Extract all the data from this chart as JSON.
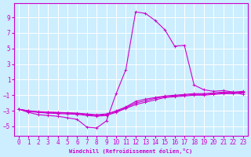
{
  "xlabel": "Windchill (Refroidissement éolien,°C)",
  "xlim": [
    -0.5,
    23.5
  ],
  "ylim": [
    -6.2,
    10.8
  ],
  "xticks": [
    0,
    1,
    2,
    3,
    4,
    5,
    6,
    7,
    8,
    9,
    10,
    11,
    12,
    13,
    14,
    15,
    16,
    17,
    18,
    19,
    20,
    21,
    22,
    23
  ],
  "yticks": [
    -5,
    -3,
    -1,
    1,
    3,
    5,
    7,
    9
  ],
  "background_color": "#cceeff",
  "grid_color": "#ffffff",
  "line_color": "#cc00cc",
  "line_width": 0.8,
  "marker": "+",
  "marker_size": 3,
  "curves": {
    "main": [
      [
        0,
        -2.8
      ],
      [
        1,
        -3.2
      ],
      [
        2,
        -3.5
      ],
      [
        3,
        -3.6
      ],
      [
        4,
        -3.7
      ],
      [
        5,
        -3.9
      ],
      [
        6,
        -4.1
      ],
      [
        7,
        -5.1
      ],
      [
        8,
        -5.2
      ],
      [
        9,
        -4.3
      ],
      [
        10,
        -0.8
      ],
      [
        11,
        2.3
      ],
      [
        12,
        9.7
      ],
      [
        13,
        9.5
      ],
      [
        14,
        8.6
      ],
      [
        15,
        7.4
      ],
      [
        16,
        5.3
      ],
      [
        17,
        5.4
      ],
      [
        18,
        0.3
      ],
      [
        19,
        -0.3
      ],
      [
        20,
        -0.5
      ],
      [
        21,
        -0.4
      ],
      [
        22,
        -0.6
      ],
      [
        23,
        -0.9
      ]
    ],
    "flat1": [
      [
        0,
        -2.8
      ],
      [
        1,
        -3.0
      ],
      [
        2,
        -3.1
      ],
      [
        3,
        -3.15
      ],
      [
        4,
        -3.2
      ],
      [
        5,
        -3.25
      ],
      [
        6,
        -3.3
      ],
      [
        7,
        -3.4
      ],
      [
        8,
        -3.5
      ],
      [
        9,
        -3.4
      ],
      [
        10,
        -3.0
      ],
      [
        11,
        -2.5
      ],
      [
        12,
        -1.8
      ],
      [
        13,
        -1.5
      ],
      [
        14,
        -1.3
      ],
      [
        15,
        -1.1
      ],
      [
        16,
        -1.0
      ],
      [
        17,
        -0.9
      ],
      [
        18,
        -0.8
      ],
      [
        19,
        -0.8
      ],
      [
        20,
        -0.7
      ],
      [
        21,
        -0.6
      ],
      [
        22,
        -0.6
      ],
      [
        23,
        -0.5
      ]
    ],
    "flat2": [
      [
        0,
        -2.8
      ],
      [
        1,
        -3.0
      ],
      [
        2,
        -3.15
      ],
      [
        3,
        -3.2
      ],
      [
        4,
        -3.25
      ],
      [
        5,
        -3.3
      ],
      [
        6,
        -3.35
      ],
      [
        7,
        -3.5
      ],
      [
        8,
        -3.6
      ],
      [
        9,
        -3.5
      ],
      [
        10,
        -3.1
      ],
      [
        11,
        -2.6
      ],
      [
        12,
        -2.0
      ],
      [
        13,
        -1.7
      ],
      [
        14,
        -1.4
      ],
      [
        15,
        -1.2
      ],
      [
        16,
        -1.1
      ],
      [
        17,
        -1.0
      ],
      [
        18,
        -0.9
      ],
      [
        19,
        -0.9
      ],
      [
        20,
        -0.8
      ],
      [
        21,
        -0.7
      ],
      [
        22,
        -0.7
      ],
      [
        23,
        -0.6
      ]
    ],
    "flat3": [
      [
        0,
        -2.8
      ],
      [
        1,
        -3.1
      ],
      [
        2,
        -3.2
      ],
      [
        3,
        -3.3
      ],
      [
        4,
        -3.35
      ],
      [
        5,
        -3.4
      ],
      [
        6,
        -3.45
      ],
      [
        7,
        -3.6
      ],
      [
        8,
        -3.7
      ],
      [
        9,
        -3.6
      ],
      [
        10,
        -3.2
      ],
      [
        11,
        -2.7
      ],
      [
        12,
        -2.2
      ],
      [
        13,
        -1.9
      ],
      [
        14,
        -1.6
      ],
      [
        15,
        -1.3
      ],
      [
        16,
        -1.2
      ],
      [
        17,
        -1.1
      ],
      [
        18,
        -1.0
      ],
      [
        19,
        -1.0
      ],
      [
        20,
        -0.9
      ],
      [
        21,
        -0.8
      ],
      [
        22,
        -0.8
      ],
      [
        23,
        -0.7
      ]
    ]
  }
}
